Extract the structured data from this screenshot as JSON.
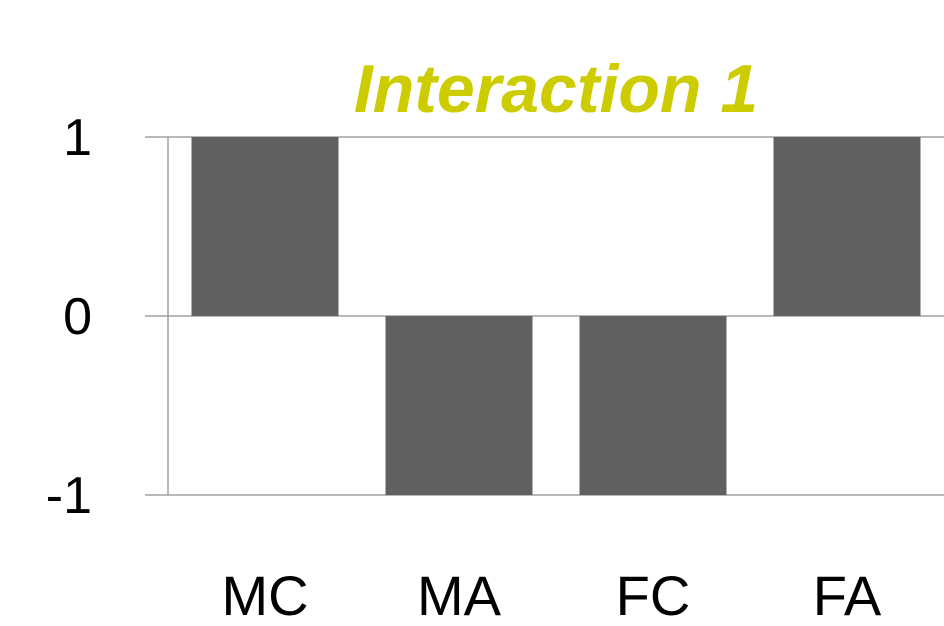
{
  "chart_data": {
    "type": "bar",
    "title": "Interaction 1",
    "categories": [
      "MC",
      "MA",
      "FC",
      "FA"
    ],
    "values": [
      1,
      -1,
      -1,
      1
    ],
    "yticks": [
      "1",
      "0",
      "-1"
    ],
    "ylim": [
      -1,
      1
    ],
    "xlabel": "",
    "ylabel": "",
    "grid": true,
    "legend": "none"
  },
  "colors": {
    "title": "#cccc00",
    "bar": "#606060",
    "grid": "#a0a0a0",
    "axis": "#a0a0a0"
  }
}
